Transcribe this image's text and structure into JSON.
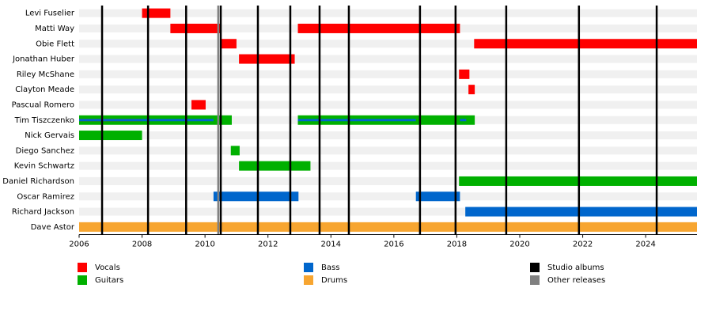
{
  "chart_data": {
    "type": "timeline",
    "xlim": [
      2006,
      2025.63
    ],
    "xticks": [
      2006,
      2008,
      2010,
      2012,
      2014,
      2016,
      2018,
      2020,
      2022,
      2024
    ],
    "series": [
      {
        "name": "Vocals",
        "color": "#ff0000"
      },
      {
        "name": "Guitars",
        "color": "#00b000"
      },
      {
        "name": "Bass",
        "color": "#0066cc"
      },
      {
        "name": "Drums",
        "color": "#f7a530"
      }
    ],
    "rows": [
      {
        "name": "Levi Fuselier",
        "bars": [
          {
            "role": "Vocals",
            "start": 2008.0,
            "end": 2008.9
          }
        ]
      },
      {
        "name": "Matti Way",
        "bars": [
          {
            "role": "Vocals",
            "start": 2008.9,
            "end": 2010.5
          },
          {
            "role": "Vocals",
            "start": 2012.95,
            "end": 2018.1
          }
        ]
      },
      {
        "name": "Obie Flett",
        "bars": [
          {
            "role": "Vocals",
            "start": 2010.5,
            "end": 2011.0
          },
          {
            "role": "Vocals",
            "start": 2018.55,
            "end": 2025.63
          }
        ]
      },
      {
        "name": "Jonathan Huber",
        "bars": [
          {
            "role": "Vocals",
            "start": 2011.08,
            "end": 2012.85
          }
        ]
      },
      {
        "name": "Riley McShane",
        "bars": [
          {
            "role": "Vocals",
            "start": 2018.07,
            "end": 2018.4
          }
        ]
      },
      {
        "name": "Clayton Meade",
        "bars": [
          {
            "role": "Vocals",
            "start": 2018.37,
            "end": 2018.57
          }
        ]
      },
      {
        "name": "Pascual Romero",
        "bars": [
          {
            "role": "Vocals",
            "start": 2009.57,
            "end": 2010.02
          }
        ]
      },
      {
        "name": "Tim Tiszczenko",
        "bars": [
          {
            "role": "Guitars",
            "start": 2006,
            "end": 2010.85
          },
          {
            "role": "Guitars",
            "start": 2012.95,
            "end": 2018.57
          },
          {
            "role": "Vocals",
            "start": 2006,
            "end": 2008.0,
            "thin": true
          },
          {
            "role": "Bass",
            "start": 2006,
            "end": 2010.27,
            "thin": true
          },
          {
            "role": "Bass",
            "start": 2012.95,
            "end": 2016.7,
            "thin": true
          },
          {
            "role": "Bass",
            "start": 2018.1,
            "end": 2018.3,
            "thin": true
          }
        ]
      },
      {
        "name": "Nick Gervais",
        "bars": [
          {
            "role": "Guitars",
            "start": 2006,
            "end": 2008.0
          }
        ]
      },
      {
        "name": "Diego Sanchez",
        "bars": [
          {
            "role": "Guitars",
            "start": 2010.82,
            "end": 2011.1
          }
        ]
      },
      {
        "name": "Kevin Schwartz",
        "bars": [
          {
            "role": "Guitars",
            "start": 2011.08,
            "end": 2013.35
          }
        ]
      },
      {
        "name": "Daniel Richardson",
        "bars": [
          {
            "role": "Guitars",
            "start": 2018.07,
            "end": 2025.63
          }
        ]
      },
      {
        "name": "Oscar Ramirez",
        "bars": [
          {
            "role": "Bass",
            "start": 2010.27,
            "end": 2012.97
          },
          {
            "role": "Bass",
            "start": 2016.7,
            "end": 2018.1
          }
        ]
      },
      {
        "name": "Richard Jackson",
        "bars": [
          {
            "role": "Bass",
            "start": 2018.27,
            "end": 2025.63
          }
        ]
      },
      {
        "name": "Dave Astor",
        "bars": [
          {
            "role": "Drums",
            "start": 2006,
            "end": 2025.63
          }
        ]
      }
    ],
    "releases": [
      {
        "name": "Studio albums",
        "color": "#000000",
        "x": [
          2006.73,
          2008.19,
          2009.4,
          2010.5,
          2011.68,
          2012.71,
          2013.64,
          2014.57,
          2016.83,
          2017.96,
          2019.57,
          2021.88,
          2024.35
        ]
      },
      {
        "name": "Other releases",
        "color": "#808080",
        "x": [
          2010.42
        ]
      }
    ]
  }
}
